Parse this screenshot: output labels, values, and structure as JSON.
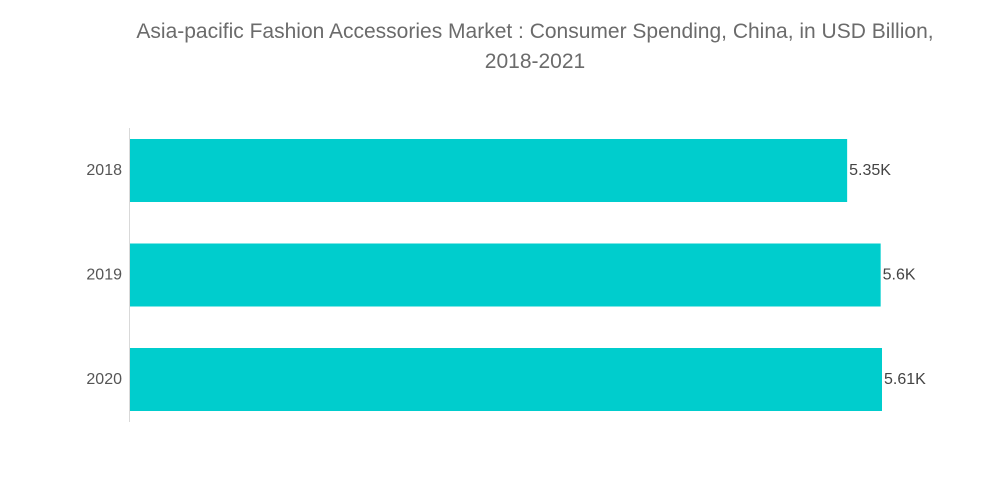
{
  "chart_data": {
    "type": "bar",
    "orientation": "horizontal",
    "title": "Asia-pacific Fashion Accessories Market : Consumer Spending, China, in USD Billion,\n2018-2021",
    "categories": [
      "2018",
      "2019",
      "2020"
    ],
    "values": [
      5350,
      5600,
      5610
    ],
    "data_labels": [
      "5.35K",
      "5.6K",
      "5.61K"
    ],
    "xlim": [
      0,
      5610
    ],
    "color": "#00CDCD",
    "grid": false,
    "legend": "none"
  }
}
